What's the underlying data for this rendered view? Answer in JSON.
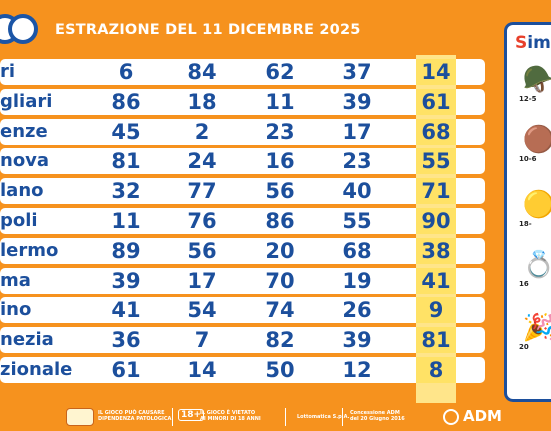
{
  "header": {
    "title": "ESTRAZIONE DEL 11 DICEMBRE 2025"
  },
  "rows": [
    {
      "city": "ri",
      "n": [
        "6",
        "84",
        "62",
        "37",
        "14"
      ]
    },
    {
      "city": "gliari",
      "n": [
        "86",
        "18",
        "11",
        "39",
        "61"
      ]
    },
    {
      "city": "enze",
      "n": [
        "45",
        "2",
        "23",
        "17",
        "68"
      ]
    },
    {
      "city": "nova",
      "n": [
        "81",
        "24",
        "16",
        "23",
        "55"
      ]
    },
    {
      "city": "lano",
      "n": [
        "32",
        "77",
        "56",
        "40",
        "71"
      ]
    },
    {
      "city": "poli",
      "n": [
        "11",
        "76",
        "86",
        "55",
        "90"
      ]
    },
    {
      "city": "lermo",
      "n": [
        "89",
        "56",
        "20",
        "68",
        "38"
      ]
    },
    {
      "city": "ma",
      "n": [
        "39",
        "17",
        "70",
        "19",
        "41"
      ]
    },
    {
      "city": "ino",
      "n": [
        "41",
        "54",
        "74",
        "26",
        "9"
      ]
    },
    {
      "city": "nezia",
      "n": [
        "36",
        "7",
        "82",
        "39",
        "81"
      ]
    },
    {
      "city": "zionale",
      "n": [
        "61",
        "14",
        "50",
        "12",
        "8"
      ]
    }
  ],
  "side_panel": {
    "title_first": "S",
    "title_rest": "imb",
    "symbols": [
      {
        "icon": "army-helmet-icon",
        "glyph": "🪖",
        "caption": "12-5"
      },
      {
        "icon": "cookie-man-icon",
        "glyph": "🟤",
        "caption": "10-6"
      },
      {
        "icon": "coin-icon",
        "glyph": "🟡",
        "caption": "18-"
      },
      {
        "icon": "ring-icon",
        "glyph": "💍",
        "caption": "16"
      },
      {
        "icon": "party-hat-icon",
        "glyph": "🎉",
        "caption": "20"
      }
    ]
  },
  "footer": {
    "gamble_text_1": "IL GIOCO PUÒ CAUSARE",
    "gamble_text_2": "DIPENDENZA PATOLOGICA",
    "age_badge": "18+",
    "minor_text_1": "IL GIOCO È VIETATO",
    "minor_text_2": "AI MINORI DI 18 ANNI",
    "company": "Lottomatica S.p.A.",
    "concession_1": "Concessione ADM",
    "concession_2": "del 20 Giugno 2016",
    "adm": "ADM"
  },
  "colors": {
    "background": "#f6921e",
    "number_blue": "#1c4f9c",
    "highlight_yellow": "#ffe266"
  }
}
